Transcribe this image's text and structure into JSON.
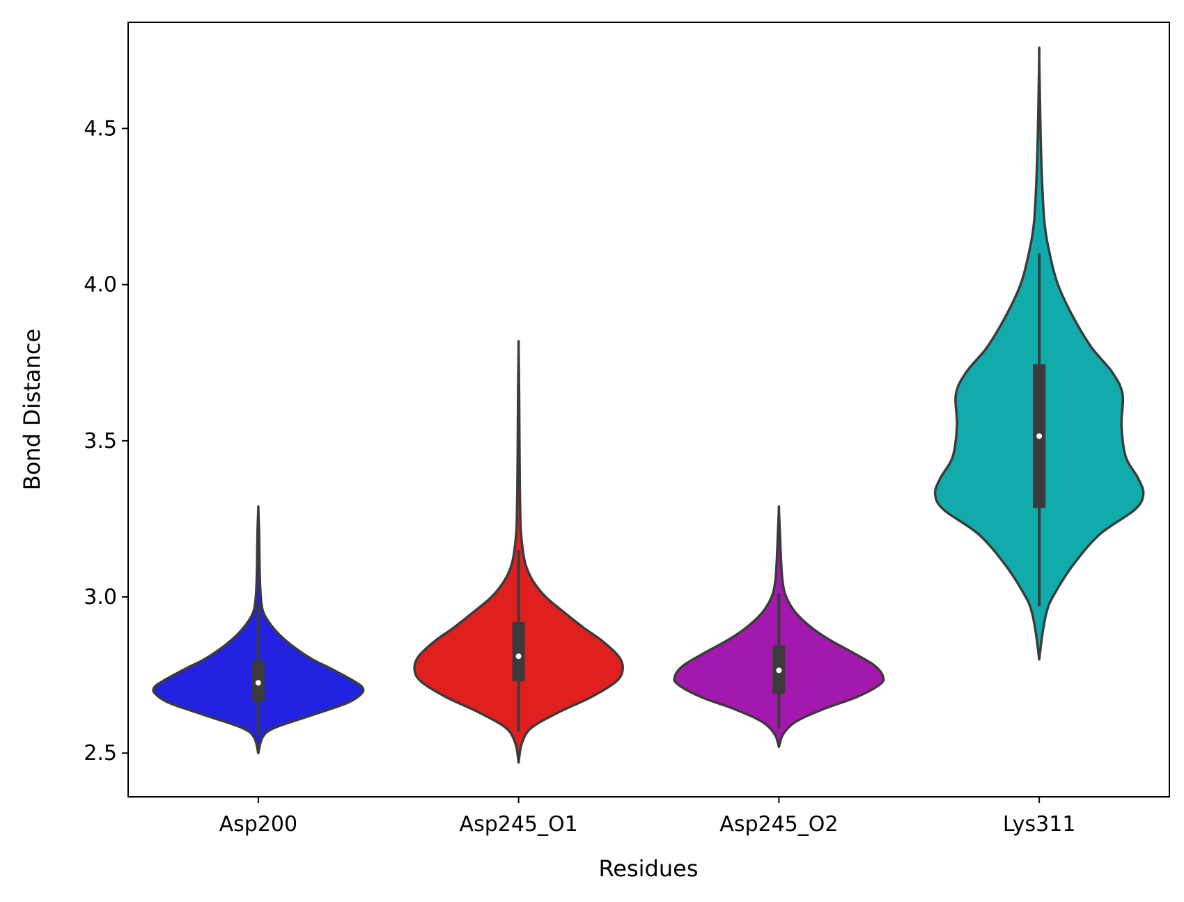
{
  "chart_data": {
    "type": "violin",
    "title": "",
    "xlabel": "Residues",
    "ylabel": "Bond Distance",
    "ylim": [
      2.36,
      4.84
    ],
    "yticks": [
      2.5,
      3.0,
      3.5,
      4.0,
      4.5
    ],
    "ytick_labels": [
      "2.5",
      "3.0",
      "3.5",
      "4.0",
      "4.5"
    ],
    "grid": false,
    "legend": "none",
    "categories": [
      "Asp200",
      "Asp245_O1",
      "Asp245_O2",
      "Lys311"
    ],
    "series": [
      {
        "category": "Asp200",
        "color": "#2222e0",
        "min": 2.5,
        "q1": 2.665,
        "median": 2.725,
        "q3": 2.795,
        "max": 3.28,
        "whisker_low": 2.56,
        "whisker_high": 2.98,
        "profile": [
          [
            2.5,
            0.0
          ],
          [
            2.55,
            0.04
          ],
          [
            2.58,
            0.15
          ],
          [
            2.62,
            0.5
          ],
          [
            2.66,
            0.85
          ],
          [
            2.69,
            0.99
          ],
          [
            2.71,
            1.0
          ],
          [
            2.73,
            0.92
          ],
          [
            2.77,
            0.7
          ],
          [
            2.8,
            0.52
          ],
          [
            2.84,
            0.34
          ],
          [
            2.88,
            0.2
          ],
          [
            2.92,
            0.1
          ],
          [
            2.96,
            0.04
          ],
          [
            3.02,
            0.02
          ],
          [
            3.1,
            0.012
          ],
          [
            3.2,
            0.008
          ],
          [
            3.28,
            0.0
          ]
        ]
      },
      {
        "category": "Asp245_O1",
        "color": "#e01f1f",
        "min": 2.47,
        "q1": 2.73,
        "median": 2.81,
        "q3": 2.92,
        "max": 3.8,
        "whisker_low": 2.57,
        "whisker_high": 3.15,
        "profile": [
          [
            2.47,
            0.0
          ],
          [
            2.53,
            0.03
          ],
          [
            2.58,
            0.12
          ],
          [
            2.63,
            0.38
          ],
          [
            2.68,
            0.7
          ],
          [
            2.73,
            0.94
          ],
          [
            2.77,
            1.0
          ],
          [
            2.81,
            0.96
          ],
          [
            2.86,
            0.8
          ],
          [
            2.9,
            0.63
          ],
          [
            2.95,
            0.44
          ],
          [
            3.0,
            0.26
          ],
          [
            3.05,
            0.14
          ],
          [
            3.1,
            0.07
          ],
          [
            3.15,
            0.04
          ],
          [
            3.22,
            0.02
          ],
          [
            3.35,
            0.012
          ],
          [
            3.5,
            0.008
          ],
          [
            3.65,
            0.005
          ],
          [
            3.8,
            0.0
          ]
        ]
      },
      {
        "category": "Asp245_O2",
        "color": "#a318ad",
        "min": 2.52,
        "q1": 2.69,
        "median": 2.765,
        "q3": 2.845,
        "max": 3.28,
        "whisker_low": 2.58,
        "whisker_high": 3.01,
        "profile": [
          [
            2.52,
            0.0
          ],
          [
            2.56,
            0.04
          ],
          [
            2.6,
            0.16
          ],
          [
            2.64,
            0.42
          ],
          [
            2.68,
            0.75
          ],
          [
            2.72,
            0.97
          ],
          [
            2.745,
            1.0
          ],
          [
            2.78,
            0.92
          ],
          [
            2.82,
            0.72
          ],
          [
            2.86,
            0.5
          ],
          [
            2.9,
            0.32
          ],
          [
            2.95,
            0.16
          ],
          [
            3.0,
            0.07
          ],
          [
            3.05,
            0.035
          ],
          [
            3.12,
            0.02
          ],
          [
            3.2,
            0.01
          ],
          [
            3.28,
            0.0
          ]
        ]
      },
      {
        "category": "Lys311",
        "color": "#12abab",
        "min": 2.8,
        "q1": 3.285,
        "median": 3.515,
        "q3": 3.745,
        "max": 4.73,
        "whisker_low": 2.97,
        "whisker_high": 4.1,
        "profile": [
          [
            2.8,
            0.0
          ],
          [
            2.88,
            0.03
          ],
          [
            2.95,
            0.07
          ],
          [
            3.0,
            0.13
          ],
          [
            3.1,
            0.32
          ],
          [
            3.2,
            0.58
          ],
          [
            3.28,
            0.92
          ],
          [
            3.33,
            1.0
          ],
          [
            3.38,
            0.95
          ],
          [
            3.45,
            0.83
          ],
          [
            3.55,
            0.79
          ],
          [
            3.65,
            0.8
          ],
          [
            3.72,
            0.7
          ],
          [
            3.8,
            0.5
          ],
          [
            3.9,
            0.32
          ],
          [
            4.0,
            0.18
          ],
          [
            4.1,
            0.1
          ],
          [
            4.2,
            0.05
          ],
          [
            4.35,
            0.025
          ],
          [
            4.5,
            0.012
          ],
          [
            4.73,
            0.0
          ]
        ]
      }
    ]
  }
}
